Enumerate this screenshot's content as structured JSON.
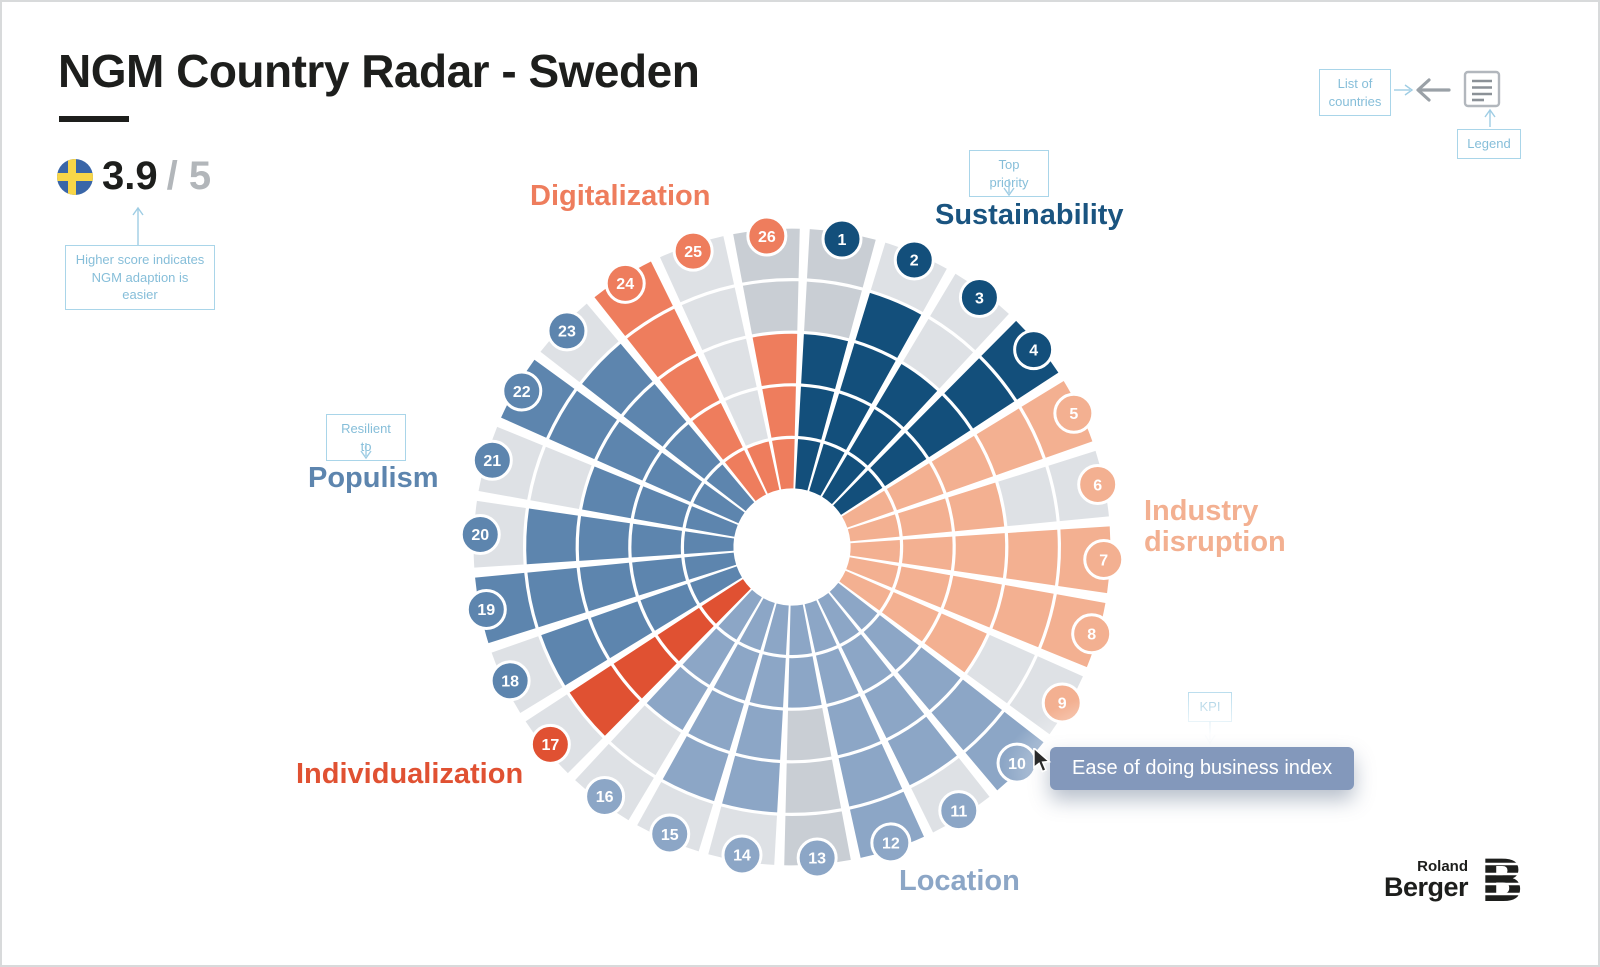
{
  "header": {
    "title": "NGM Country Radar - Sweden",
    "score_value": "3.9",
    "score_max": "/ 5",
    "score_note": "Higher score indicates NGM adaption is easier",
    "flag": "sweden-flag"
  },
  "topbar": {
    "list_of_countries_label": "List of countries",
    "legend_label": "Legend"
  },
  "callouts": {
    "top_priority": "Top priority",
    "resilient_to": "Resilient to",
    "kpi": "KPI",
    "kpi_tooltip": "Ease of doing business index"
  },
  "logo": {
    "line1": "Roland",
    "line2": "Berger",
    "mark": "B"
  },
  "ui_colors": {
    "accent_light_blue": "#86bed9",
    "callout_border": "#a9d5e9",
    "gray_light": "#dee1e5",
    "gray_dark": "#c9ced4",
    "tooltip_bg": "#8398bb",
    "title_black": "#1d1e1c",
    "score_gray": "#b2b6ba"
  },
  "chart_data": {
    "type": "radial-sunburst",
    "title": "NGM Country Radar - Sweden",
    "rings": 5,
    "ring_max": 5,
    "overall_score": 3.9,
    "gray_light": "#dee1e5",
    "gray_dark": "#c9ced4",
    "categories": [
      {
        "name": "Sustainability",
        "color": "#134f7b",
        "label_color": "#1a5480",
        "tag": "Top priority"
      },
      {
        "name": "Industry disruption",
        "color": "#f3b091",
        "label_color": "#f3b091",
        "tag": ""
      },
      {
        "name": "Location",
        "color": "#8ca6c6",
        "label_color": "#8ca6c6",
        "tag": ""
      },
      {
        "name": "Individualization",
        "color": "#e05132",
        "label_color": "#e05132",
        "tag": ""
      },
      {
        "name": "Populism",
        "color": "#5d85ae",
        "label_color": "#5d85ae",
        "tag": "Resilient to"
      },
      {
        "name": "Digitalization",
        "color": "#ee7d5d",
        "label_color": "#ee7d5d",
        "tag": ""
      }
    ],
    "segments": [
      {
        "n": 1,
        "category": "Sustainability",
        "score": 3,
        "gray": "dark"
      },
      {
        "n": 2,
        "category": "Sustainability",
        "score": 4,
        "gray": "light"
      },
      {
        "n": 3,
        "category": "Sustainability",
        "score": 3,
        "gray": "light"
      },
      {
        "n": 4,
        "category": "Sustainability",
        "score": 5,
        "gray": "light"
      },
      {
        "n": 5,
        "category": "Industry disruption",
        "score": 5,
        "gray": "light"
      },
      {
        "n": 6,
        "category": "Industry disruption",
        "score": 3,
        "gray": "light"
      },
      {
        "n": 7,
        "category": "Industry disruption",
        "score": 5,
        "gray": "light"
      },
      {
        "n": 8,
        "category": "Industry disruption",
        "score": 5,
        "gray": "light"
      },
      {
        "n": 9,
        "category": "Industry disruption",
        "score": 3,
        "gray": "light"
      },
      {
        "n": 10,
        "category": "Location",
        "score": 5,
        "gray": "light"
      },
      {
        "n": 11,
        "category": "Location",
        "score": 4,
        "gray": "light"
      },
      {
        "n": 12,
        "category": "Location",
        "score": 5,
        "gray": "light"
      },
      {
        "n": 13,
        "category": "Location",
        "score": 2,
        "gray": "dark"
      },
      {
        "n": 14,
        "category": "Location",
        "score": 4,
        "gray": "light"
      },
      {
        "n": 15,
        "category": "Location",
        "score": 4,
        "gray": "light"
      },
      {
        "n": 16,
        "category": "Location",
        "score": 3,
        "gray": "light"
      },
      {
        "n": 17,
        "category": "Individualization",
        "score": 4,
        "gray": "light"
      },
      {
        "n": 18,
        "category": "Populism",
        "score": 4,
        "gray": "light"
      },
      {
        "n": 19,
        "category": "Populism",
        "score": 5,
        "gray": "light"
      },
      {
        "n": 20,
        "category": "Populism",
        "score": 4,
        "gray": "light"
      },
      {
        "n": 21,
        "category": "Populism",
        "score": 3,
        "gray": "light"
      },
      {
        "n": 22,
        "category": "Populism",
        "score": 5,
        "gray": "light"
      },
      {
        "n": 23,
        "category": "Populism",
        "score": 4,
        "gray": "light"
      },
      {
        "n": 24,
        "category": "Digitalization",
        "score": 5,
        "gray": "light"
      },
      {
        "n": 25,
        "category": "Digitalization",
        "score": 1,
        "gray": "light"
      },
      {
        "n": 26,
        "category": "Digitalization",
        "score": 3,
        "gray": "dark"
      }
    ],
    "highlighted_kpi": {
      "segment": 10,
      "label": "Ease of doing business index"
    }
  }
}
